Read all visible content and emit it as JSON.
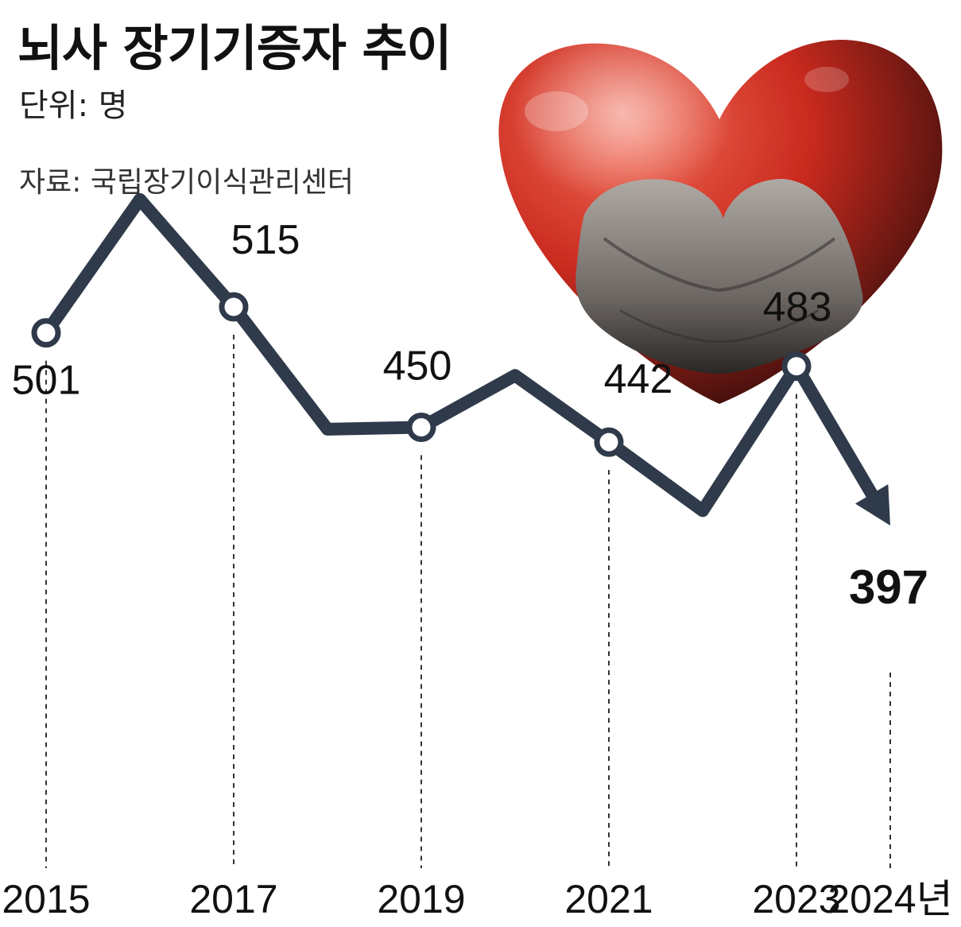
{
  "header": {
    "title": "뇌사 장기기증자 추이",
    "unit": "단위: 명",
    "source": "자료: 국립장기이식관리센터"
  },
  "chart_data": {
    "type": "line",
    "title": "뇌사 장기기증자 추이",
    "xlabel": "",
    "ylabel": "",
    "x": [
      2015,
      2016,
      2017,
      2018,
      2019,
      2020,
      2021,
      2022,
      2023,
      2024
    ],
    "x_tick_labels": [
      "2015",
      "2017",
      "2019",
      "2021",
      "2023",
      "2024년"
    ],
    "x_tick_years": [
      2015,
      2017,
      2019,
      2021,
      2023,
      2024
    ],
    "series": [
      {
        "values": [
          501,
          573,
          515,
          449,
          450,
          478,
          442,
          405,
          483,
          397
        ],
        "labeled": [
          true,
          false,
          true,
          false,
          true,
          false,
          true,
          false,
          true,
          true
        ]
      }
    ],
    "data_labels": [
      "501",
      "515",
      "450",
      "442",
      "483",
      "397"
    ],
    "ylim": [
      380,
      600
    ],
    "grid": false,
    "legend": "none",
    "colors": {
      "line": "#2f3a4a",
      "marker_fill": "#ffffff",
      "guide": "#333333"
    },
    "illustration": "heart-with-hands"
  }
}
